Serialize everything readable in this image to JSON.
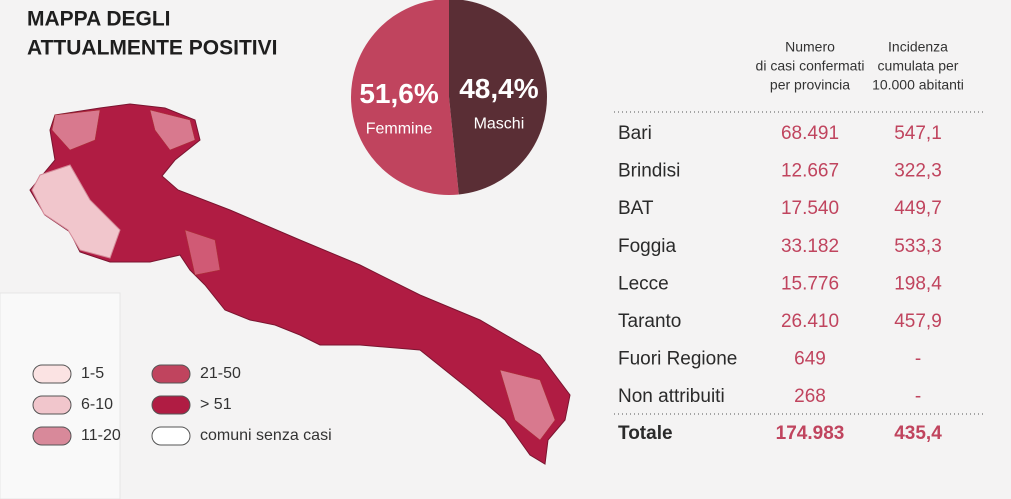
{
  "chart_data": {
    "type": "pie",
    "series": [
      {
        "name": "Femmine",
        "color": "#c0445e",
        "values": [
          51.6
        ],
        "value_labels": [
          "51,6%"
        ]
      },
      {
        "name": "Maschi",
        "color": "#5a2e35",
        "values": [
          48.4
        ],
        "value_labels": [
          "48,4%"
        ]
      }
    ]
  },
  "map": {
    "title_lines": [
      "MAPPA DEGLI",
      "ATTUALMENTE POSITIVI"
    ],
    "legend": [
      {
        "label": "1-5",
        "color": "#fbe3e3"
      },
      {
        "label": "6-10",
        "color": "#f1c6cc"
      },
      {
        "label": "11-20",
        "color": "#d8899a"
      },
      {
        "label": "21-50",
        "color": "#c0445e"
      },
      {
        "label": "> 51",
        "color": "#b01c43"
      },
      {
        "label": "comuni senza casi",
        "color": "#ffffff"
      }
    ]
  },
  "table": {
    "headers": [
      [
        "Numero",
        "di casi confermati",
        "per provincia"
      ],
      [
        "Incidenza",
        "cumulata per",
        "10.000 abitanti"
      ]
    ],
    "rows": [
      [
        "Bari",
        "68.491",
        "547,1"
      ],
      [
        "Brindisi",
        "12.667",
        "322,3"
      ],
      [
        "BAT",
        "17.540",
        "449,7"
      ],
      [
        "Foggia",
        "33.182",
        "533,3"
      ],
      [
        "Lecce",
        "15.776",
        "198,4"
      ],
      [
        "Taranto",
        "26.410",
        "457,9"
      ],
      [
        "Fuori Regione",
        "649",
        "-"
      ],
      [
        "Non attribuiti",
        "268",
        "-"
      ]
    ],
    "total": [
      "Totale",
      "174.983",
      "435,4"
    ]
  }
}
